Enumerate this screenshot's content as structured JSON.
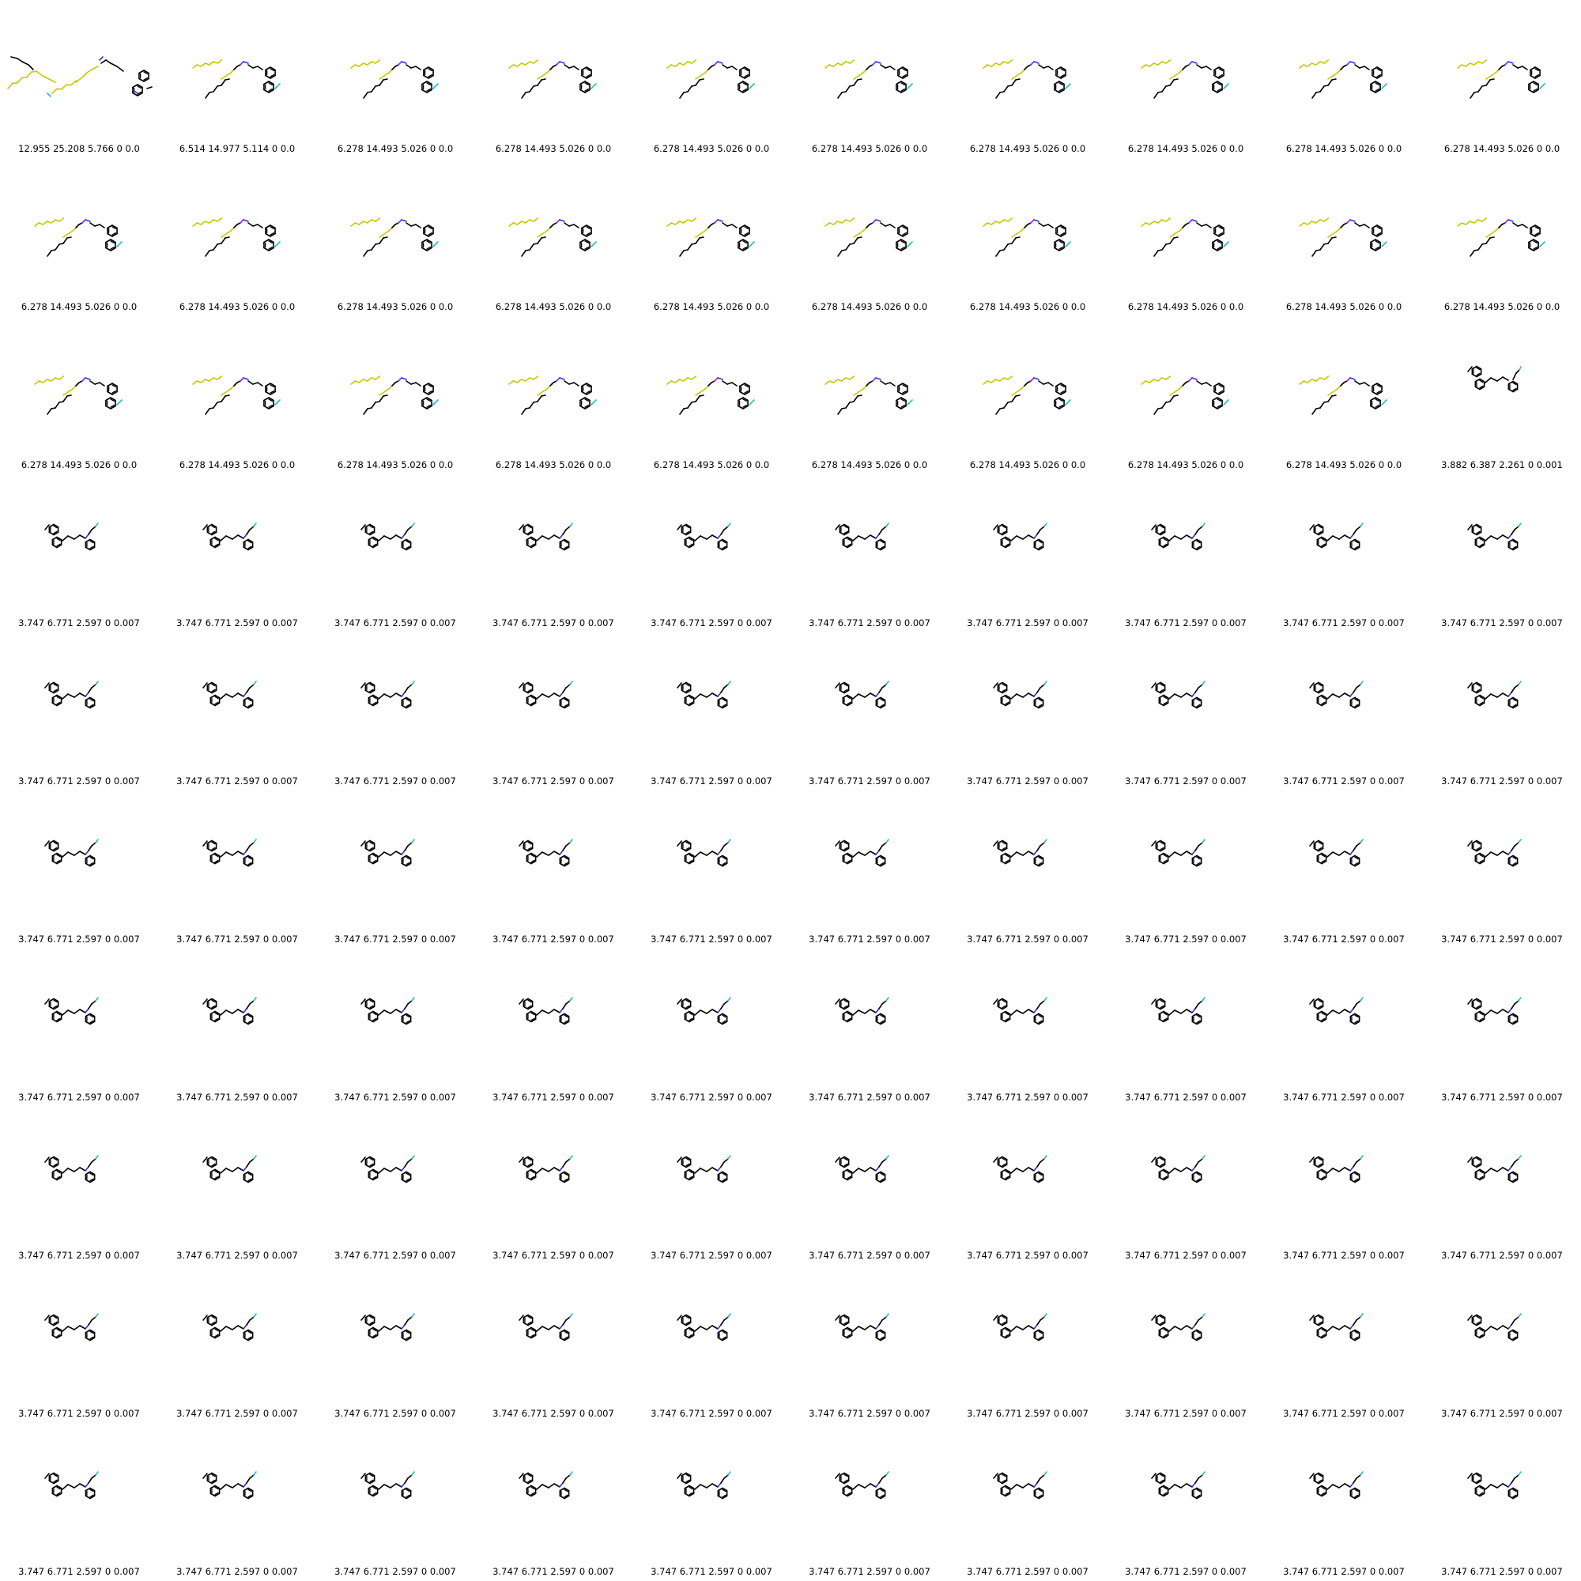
{
  "grid": {
    "rows": 10,
    "cols": 10,
    "cells": [
      {
        "caption": "12.955 25.208 5.766 0 0.0",
        "molecule": "long-chain-A"
      },
      {
        "caption": "6.514 14.977 5.114 0 0.0",
        "molecule": "long-chain-B"
      },
      {
        "caption": "6.278 14.493 5.026 0 0.0",
        "molecule": "long-chain-C"
      },
      {
        "caption": "6.278 14.493 5.026 0 0.0",
        "molecule": "long-chain-C"
      },
      {
        "caption": "6.278 14.493 5.026 0 0.0",
        "molecule": "long-chain-C"
      },
      {
        "caption": "6.278 14.493 5.026 0 0.0",
        "molecule": "long-chain-C"
      },
      {
        "caption": "6.278 14.493 5.026 0 0.0",
        "molecule": "long-chain-C"
      },
      {
        "caption": "6.278 14.493 5.026 0 0.0",
        "molecule": "long-chain-C"
      },
      {
        "caption": "6.278 14.493 5.026 0 0.0",
        "molecule": "long-chain-C"
      },
      {
        "caption": "6.278 14.493 5.026 0 0.0",
        "molecule": "long-chain-C"
      },
      {
        "caption": "6.278 14.493 5.026 0 0.0",
        "molecule": "long-chain-C"
      },
      {
        "caption": "6.278 14.493 5.026 0 0.0",
        "molecule": "long-chain-C"
      },
      {
        "caption": "6.278 14.493 5.026 0 0.0",
        "molecule": "long-chain-C"
      },
      {
        "caption": "6.278 14.493 5.026 0 0.0",
        "molecule": "long-chain-C"
      },
      {
        "caption": "6.278 14.493 5.026 0 0.0",
        "molecule": "long-chain-C"
      },
      {
        "caption": "6.278 14.493 5.026 0 0.0",
        "molecule": "long-chain-C"
      },
      {
        "caption": "6.278 14.493 5.026 0 0.0",
        "molecule": "long-chain-C"
      },
      {
        "caption": "6.278 14.493 5.026 0 0.0",
        "molecule": "long-chain-C"
      },
      {
        "caption": "6.278 14.493 5.026 0 0.0",
        "molecule": "long-chain-C"
      },
      {
        "caption": "6.278 14.493 5.026 0 0.0",
        "molecule": "long-chain-C"
      },
      {
        "caption": "6.278 14.493 5.026 0 0.0",
        "molecule": "long-chain-C"
      },
      {
        "caption": "6.278 14.493 5.026 0 0.0",
        "molecule": "long-chain-C"
      },
      {
        "caption": "6.278 14.493 5.026 0 0.0",
        "molecule": "long-chain-C"
      },
      {
        "caption": "6.278 14.493 5.026 0 0.0",
        "molecule": "long-chain-C"
      },
      {
        "caption": "6.278 14.493 5.026 0 0.0",
        "molecule": "long-chain-C"
      },
      {
        "caption": "6.278 14.493 5.026 0 0.0",
        "molecule": "long-chain-C"
      },
      {
        "caption": "6.278 14.493 5.026 0 0.0",
        "molecule": "long-chain-C"
      },
      {
        "caption": "6.278 14.493 5.026 0 0.0",
        "molecule": "long-chain-C"
      },
      {
        "caption": "6.278 14.493 5.026 0 0.0",
        "molecule": "long-chain-C"
      },
      {
        "caption": "3.882 6.387 2.261 0 0.001",
        "molecule": "biaryl-small"
      },
      {
        "caption": "3.747 6.771 2.597 0 0.007",
        "molecule": "biaryl"
      },
      {
        "caption": "3.747 6.771 2.597 0 0.007",
        "molecule": "biaryl"
      },
      {
        "caption": "3.747 6.771 2.597 0 0.007",
        "molecule": "biaryl"
      },
      {
        "caption": "3.747 6.771 2.597 0 0.007",
        "molecule": "biaryl"
      },
      {
        "caption": "3.747 6.771 2.597 0 0.007",
        "molecule": "biaryl"
      },
      {
        "caption": "3.747 6.771 2.597 0 0.007",
        "molecule": "biaryl"
      },
      {
        "caption": "3.747 6.771 2.597 0 0.007",
        "molecule": "biaryl"
      },
      {
        "caption": "3.747 6.771 2.597 0 0.007",
        "molecule": "biaryl"
      },
      {
        "caption": "3.747 6.771 2.597 0 0.007",
        "molecule": "biaryl"
      },
      {
        "caption": "3.747 6.771 2.597 0 0.007",
        "molecule": "biaryl"
      },
      {
        "caption": "3.747 6.771 2.597 0 0.007",
        "molecule": "biaryl"
      },
      {
        "caption": "3.747 6.771 2.597 0 0.007",
        "molecule": "biaryl"
      },
      {
        "caption": "3.747 6.771 2.597 0 0.007",
        "molecule": "biaryl"
      },
      {
        "caption": "3.747 6.771 2.597 0 0.007",
        "molecule": "biaryl"
      },
      {
        "caption": "3.747 6.771 2.597 0 0.007",
        "molecule": "biaryl"
      },
      {
        "caption": "3.747 6.771 2.597 0 0.007",
        "molecule": "biaryl"
      },
      {
        "caption": "3.747 6.771 2.597 0 0.007",
        "molecule": "biaryl"
      },
      {
        "caption": "3.747 6.771 2.597 0 0.007",
        "molecule": "biaryl"
      },
      {
        "caption": "3.747 6.771 2.597 0 0.007",
        "molecule": "biaryl"
      },
      {
        "caption": "3.747 6.771 2.597 0 0.007",
        "molecule": "biaryl"
      },
      {
        "caption": "3.747 6.771 2.597 0 0.007",
        "molecule": "biaryl"
      },
      {
        "caption": "3.747 6.771 2.597 0 0.007",
        "molecule": "biaryl"
      },
      {
        "caption": "3.747 6.771 2.597 0 0.007",
        "molecule": "biaryl"
      },
      {
        "caption": "3.747 6.771 2.597 0 0.007",
        "molecule": "biaryl"
      },
      {
        "caption": "3.747 6.771 2.597 0 0.007",
        "molecule": "biaryl"
      },
      {
        "caption": "3.747 6.771 2.597 0 0.007",
        "molecule": "biaryl"
      },
      {
        "caption": "3.747 6.771 2.597 0 0.007",
        "molecule": "biaryl"
      },
      {
        "caption": "3.747 6.771 2.597 0 0.007",
        "molecule": "biaryl"
      },
      {
        "caption": "3.747 6.771 2.597 0 0.007",
        "molecule": "biaryl"
      },
      {
        "caption": "3.747 6.771 2.597 0 0.007",
        "molecule": "biaryl"
      },
      {
        "caption": "3.747 6.771 2.597 0 0.007",
        "molecule": "biaryl"
      },
      {
        "caption": "3.747 6.771 2.597 0 0.007",
        "molecule": "biaryl"
      },
      {
        "caption": "3.747 6.771 2.597 0 0.007",
        "molecule": "biaryl"
      },
      {
        "caption": "3.747 6.771 2.597 0 0.007",
        "molecule": "biaryl"
      },
      {
        "caption": "3.747 6.771 2.597 0 0.007",
        "molecule": "biaryl"
      },
      {
        "caption": "3.747 6.771 2.597 0 0.007",
        "molecule": "biaryl"
      },
      {
        "caption": "3.747 6.771 2.597 0 0.007",
        "molecule": "biaryl"
      },
      {
        "caption": "3.747 6.771 2.597 0 0.007",
        "molecule": "biaryl"
      },
      {
        "caption": "3.747 6.771 2.597 0 0.007",
        "molecule": "biaryl"
      },
      {
        "caption": "3.747 6.771 2.597 0 0.007",
        "molecule": "biaryl"
      },
      {
        "caption": "3.747 6.771 2.597 0 0.007",
        "molecule": "biaryl"
      },
      {
        "caption": "3.747 6.771 2.597 0 0.007",
        "molecule": "biaryl"
      },
      {
        "caption": "3.747 6.771 2.597 0 0.007",
        "molecule": "biaryl"
      },
      {
        "caption": "3.747 6.771 2.597 0 0.007",
        "molecule": "biaryl"
      },
      {
        "caption": "3.747 6.771 2.597 0 0.007",
        "molecule": "biaryl"
      },
      {
        "caption": "3.747 6.771 2.597 0 0.007",
        "molecule": "biaryl"
      },
      {
        "caption": "3.747 6.771 2.597 0 0.007",
        "molecule": "biaryl"
      },
      {
        "caption": "3.747 6.771 2.597 0 0.007",
        "molecule": "biaryl"
      },
      {
        "caption": "3.747 6.771 2.597 0 0.007",
        "molecule": "biaryl"
      },
      {
        "caption": "3.747 6.771 2.597 0 0.007",
        "molecule": "biaryl"
      },
      {
        "caption": "3.747 6.771 2.597 0 0.007",
        "molecule": "biaryl"
      },
      {
        "caption": "3.747 6.771 2.597 0 0.007",
        "molecule": "biaryl"
      },
      {
        "caption": "3.747 6.771 2.597 0 0.007",
        "molecule": "biaryl"
      },
      {
        "caption": "3.747 6.771 2.597 0 0.007",
        "molecule": "biaryl"
      },
      {
        "caption": "3.747 6.771 2.597 0 0.007",
        "molecule": "biaryl"
      },
      {
        "caption": "3.747 6.771 2.597 0 0.007",
        "molecule": "biaryl"
      },
      {
        "caption": "3.747 6.771 2.597 0 0.007",
        "molecule": "biaryl"
      },
      {
        "caption": "3.747 6.771 2.597 0 0.007",
        "molecule": "biaryl"
      },
      {
        "caption": "3.747 6.771 2.597 0 0.007",
        "molecule": "biaryl"
      },
      {
        "caption": "3.747 6.771 2.597 0 0.007",
        "molecule": "biaryl"
      },
      {
        "caption": "3.747 6.771 2.597 0 0.007",
        "molecule": "biaryl"
      },
      {
        "caption": "3.747 6.771 2.597 0 0.007",
        "molecule": "biaryl"
      },
      {
        "caption": "3.747 6.771 2.597 0 0.007",
        "molecule": "biaryl"
      },
      {
        "caption": "3.747 6.771 2.597 0 0.007",
        "molecule": "biaryl"
      },
      {
        "caption": "3.747 6.771 2.597 0 0.007",
        "molecule": "biaryl"
      },
      {
        "caption": "3.747 6.771 2.597 0 0.007",
        "molecule": "biaryl"
      },
      {
        "caption": "3.747 6.771 2.597 0 0.007",
        "molecule": "biaryl"
      },
      {
        "caption": "3.747 6.771 2.597 0 0.007",
        "molecule": "biaryl"
      },
      {
        "caption": "3.747 6.771 2.597 0 0.007",
        "molecule": "biaryl"
      },
      {
        "caption": "3.747 6.771 2.597 0 0.007",
        "molecule": "biaryl"
      }
    ]
  },
  "colors": {
    "carbon": "#000000",
    "highlight": "#c8c800",
    "nitrogen": "#3030e0",
    "oxygen": "#e00000",
    "fluorine": "#20c0c0",
    "phosphorus": "#a020f0"
  }
}
